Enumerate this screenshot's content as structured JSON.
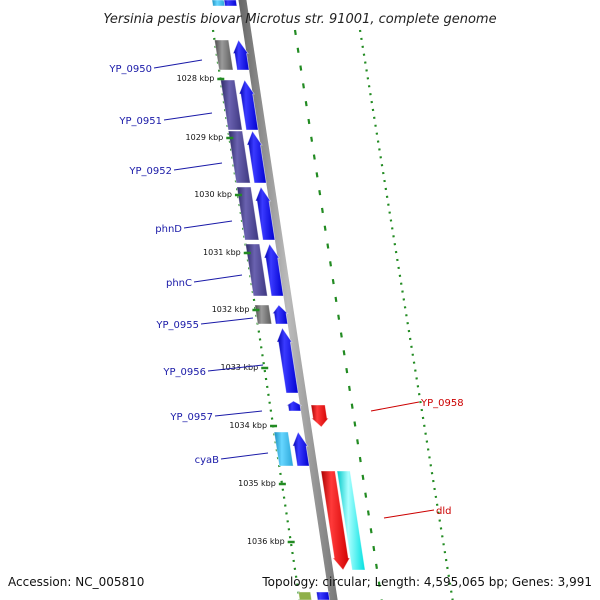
{
  "title": "Yersinia pestis biovar Microtus str. 91001, complete genome",
  "accession": "Accession: NC_005810",
  "summary": "Topology: circular; Length: 4,595,065 bp; Genes: 3,991",
  "colors": {
    "forward_cds": "#0000ff",
    "reverse_cds": "#ff0000",
    "forward_cog": "#4b4490",
    "unassigned_cog": "#6e6e6e",
    "forward_cog_cyan": "#29b6e6",
    "reverse_cog_cyan": "#00ffff",
    "backbone": "#8a8a8a",
    "ticks": "#228b22",
    "forward_label": "#1a1aa8",
    "reverse_label": "#cc0000"
  },
  "kbp_markers": [
    "1028 kbp",
    "1029 kbp",
    "1030 kbp",
    "1031 kbp",
    "1032 kbp",
    "1033 kbp",
    "1034 kbp",
    "1035 kbp",
    "1036 kbp"
  ],
  "forward_genes": [
    {
      "name": "YP_0950",
      "cog": "unassigned"
    },
    {
      "name": "YP_0951",
      "cog": "purple"
    },
    {
      "name": "YP_0952",
      "cog": "purple"
    },
    {
      "name": "phnD",
      "cog": "purple"
    },
    {
      "name": "phnC",
      "cog": "purple"
    },
    {
      "name": "YP_0955",
      "cog": "unassigned"
    },
    {
      "name": "YP_0956",
      "cog": "none"
    },
    {
      "name": "YP_0957",
      "cog": "none"
    },
    {
      "name": "cyaB",
      "cog": "cyan"
    }
  ],
  "reverse_genes": [
    {
      "name": "YP_0958",
      "cog": "none"
    },
    {
      "name": "dld",
      "cog": "cyan"
    }
  ]
}
